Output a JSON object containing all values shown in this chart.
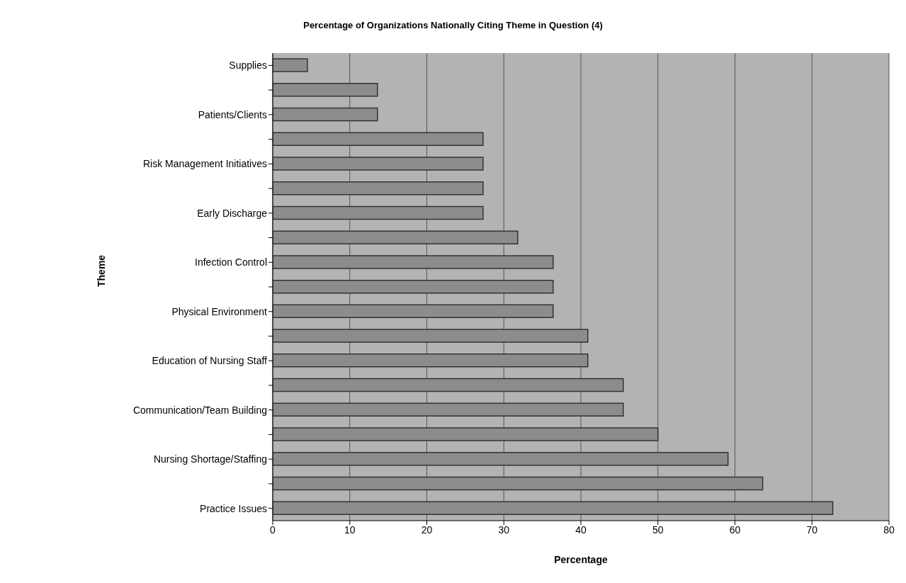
{
  "chart_data": {
    "type": "bar",
    "orientation": "horizontal",
    "title": "Percentage of Organizations Nationally Citing Theme in Question (4)",
    "xlabel": "Percentage",
    "ylabel": "Theme",
    "categories": [
      "Supplies",
      null,
      "Patients/Clients",
      null,
      "Risk Management Initiatives",
      null,
      "Early Discharge",
      null,
      "Infection Control",
      null,
      "Physical Environment",
      null,
      "Education of Nursing Staff",
      null,
      "Communication/Team Building",
      null,
      "Nursing Shortage/Staffing",
      null,
      "Practice Issues"
    ],
    "values": [
      4.5,
      13.6,
      13.6,
      27.3,
      27.3,
      27.3,
      27.3,
      31.8,
      36.4,
      36.4,
      36.4,
      40.9,
      40.9,
      45.5,
      45.5,
      50,
      59.1,
      63.6,
      72.7
    ],
    "color": "#8c8c8c",
    "xlim": [
      0,
      80
    ],
    "xticks": [
      0,
      10,
      20,
      30,
      40,
      50,
      60,
      70,
      80
    ],
    "grid": "x",
    "legend": false
  }
}
